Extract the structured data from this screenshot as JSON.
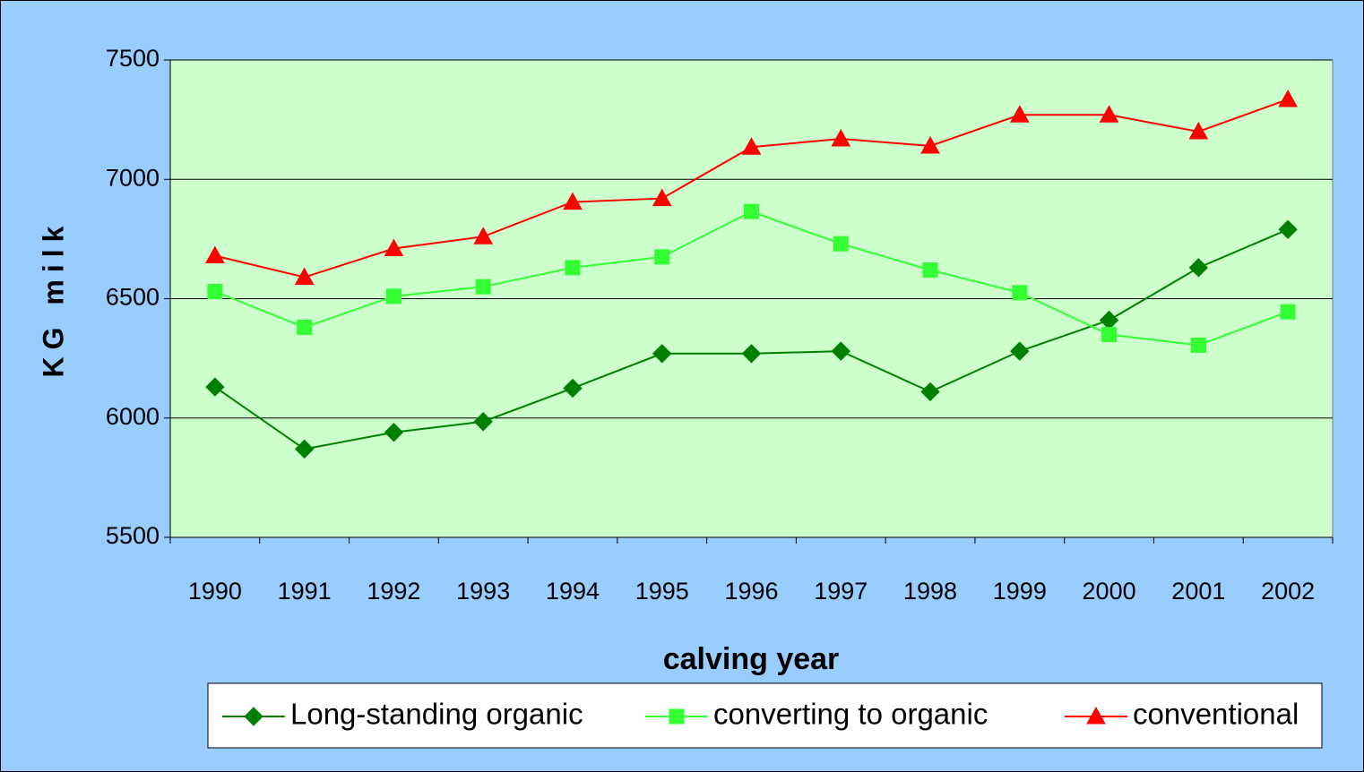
{
  "chart_data": {
    "type": "line",
    "x_label": "calving year",
    "y_label": "KG milk",
    "categories": [
      "1990",
      "1991",
      "1992",
      "1993",
      "1994",
      "1995",
      "1996",
      "1997",
      "1998",
      "1999",
      "2000",
      "2001",
      "2002"
    ],
    "series": [
      {
        "name": "Long-standing organic",
        "color": "#008000",
        "marker": "diamond",
        "values": [
          6130,
          5870,
          5940,
          5985,
          6125,
          6270,
          6270,
          6280,
          6110,
          6280,
          6410,
          6630,
          6790
        ]
      },
      {
        "name": "converting to organic",
        "color": "#33ff33",
        "marker": "square",
        "values": [
          6530,
          6380,
          6510,
          6550,
          6630,
          6675,
          6865,
          6730,
          6620,
          6525,
          6350,
          6305,
          6445
        ]
      },
      {
        "name": "conventional",
        "color": "#ff0000",
        "marker": "triangle",
        "values": [
          6680,
          6590,
          6710,
          6760,
          6905,
          6920,
          7135,
          7170,
          7140,
          7270,
          7270,
          7200,
          7335
        ]
      }
    ],
    "ylim": [
      5500,
      7500
    ],
    "yticks": [
      5500,
      6000,
      6500,
      7000,
      7500
    ],
    "grid": true,
    "legend": "bottom"
  }
}
